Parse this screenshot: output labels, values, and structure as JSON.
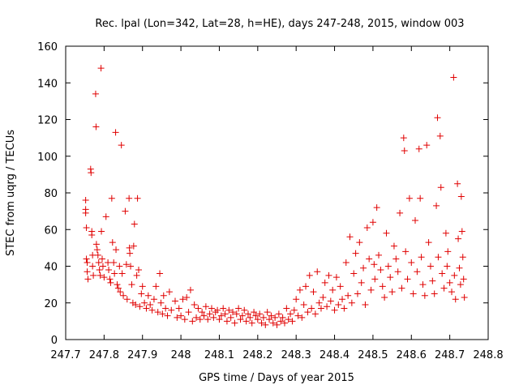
{
  "chart_data": {
    "type": "scatter",
    "title": "Rec. lpal (Lon=342, Lat=28, h=HE), days 247-248, 2015, window 003",
    "xlabel": "GPS time / Days of year 2015",
    "ylabel": "STEC from uqrg / TECUs",
    "xlim": [
      247.7,
      248.8
    ],
    "ylim": [
      0,
      160
    ],
    "xticks": [
      "247.7",
      "247.8",
      "247.9",
      "248",
      "248.1",
      "248.2",
      "248.3",
      "248.4",
      "248.5",
      "248.6",
      "248.7",
      "248.8"
    ],
    "yticks": [
      "0",
      "20",
      "40",
      "60",
      "80",
      "100",
      "120",
      "140",
      "160"
    ],
    "grid": false,
    "marker": "plus",
    "color": "#e00000",
    "points": [
      [
        247.752,
        76
      ],
      [
        247.752,
        71
      ],
      [
        247.752,
        69
      ],
      [
        247.754,
        61
      ],
      [
        247.754,
        44
      ],
      [
        247.756,
        42
      ],
      [
        247.756,
        37
      ],
      [
        247.758,
        33
      ],
      [
        247.765,
        93
      ],
      [
        247.766,
        91
      ],
      [
        247.768,
        59
      ],
      [
        247.768,
        57
      ],
      [
        247.77,
        46
      ],
      [
        247.77,
        40
      ],
      [
        247.772,
        35
      ],
      [
        247.778,
        134
      ],
      [
        247.779,
        116
      ],
      [
        247.78,
        52
      ],
      [
        247.782,
        49
      ],
      [
        247.784,
        46
      ],
      [
        247.786,
        42
      ],
      [
        247.788,
        38
      ],
      [
        247.79,
        35
      ],
      [
        247.792,
        148
      ],
      [
        247.793,
        59
      ],
      [
        247.795,
        44
      ],
      [
        247.797,
        40
      ],
      [
        247.8,
        34
      ],
      [
        247.805,
        67
      ],
      [
        247.81,
        42
      ],
      [
        247.812,
        38
      ],
      [
        247.815,
        33
      ],
      [
        247.817,
        31
      ],
      [
        247.82,
        77
      ],
      [
        247.822,
        53
      ],
      [
        247.825,
        42
      ],
      [
        247.827,
        36
      ],
      [
        247.83,
        113
      ],
      [
        247.831,
        49
      ],
      [
        247.834,
        30
      ],
      [
        247.837,
        28
      ],
      [
        247.84,
        40
      ],
      [
        247.842,
        26
      ],
      [
        247.845,
        106
      ],
      [
        247.847,
        36
      ],
      [
        247.85,
        24
      ],
      [
        247.855,
        70
      ],
      [
        247.858,
        41
      ],
      [
        247.86,
        22
      ],
      [
        247.865,
        77
      ],
      [
        247.866,
        50
      ],
      [
        247.867,
        47
      ],
      [
        247.869,
        40
      ],
      [
        247.872,
        30
      ],
      [
        247.875,
        20
      ],
      [
        247.877,
        51
      ],
      [
        247.879,
        63
      ],
      [
        247.882,
        19
      ],
      [
        247.885,
        35
      ],
      [
        247.887,
        77
      ],
      [
        247.89,
        38
      ],
      [
        247.893,
        18
      ],
      [
        247.897,
        25
      ],
      [
        247.9,
        29
      ],
      [
        247.905,
        20
      ],
      [
        247.91,
        17
      ],
      [
        247.915,
        24
      ],
      [
        247.92,
        19
      ],
      [
        247.925,
        16
      ],
      [
        247.93,
        22
      ],
      [
        247.935,
        29
      ],
      [
        247.94,
        15
      ],
      [
        247.945,
        36
      ],
      [
        247.948,
        20
      ],
      [
        247.952,
        14
      ],
      [
        247.955,
        24
      ],
      [
        247.96,
        17
      ],
      [
        247.965,
        13
      ],
      [
        247.97,
        26
      ],
      [
        247.975,
        16
      ],
      [
        247.985,
        21
      ],
      [
        247.99,
        12
      ],
      [
        247.995,
        17
      ],
      [
        248.0,
        13
      ],
      [
        248.005,
        22
      ],
      [
        248.01,
        11
      ],
      [
        248.015,
        23
      ],
      [
        248.02,
        15
      ],
      [
        248.025,
        27
      ],
      [
        248.03,
        10
      ],
      [
        248.035,
        19
      ],
      [
        248.04,
        12
      ],
      [
        248.045,
        17
      ],
      [
        248.05,
        11
      ],
      [
        248.055,
        15
      ],
      [
        248.06,
        13
      ],
      [
        248.065,
        18
      ],
      [
        248.07,
        11
      ],
      [
        248.075,
        14
      ],
      [
        248.08,
        17
      ],
      [
        248.085,
        12
      ],
      [
        248.09,
        15
      ],
      [
        248.095,
        16
      ],
      [
        248.1,
        11
      ],
      [
        248.105,
        13
      ],
      [
        248.11,
        17
      ],
      [
        248.115,
        14
      ],
      [
        248.12,
        10
      ],
      [
        248.125,
        16
      ],
      [
        248.13,
        12
      ],
      [
        248.135,
        15
      ],
      [
        248.14,
        9
      ],
      [
        248.145,
        14
      ],
      [
        248.15,
        17
      ],
      [
        248.155,
        11
      ],
      [
        248.16,
        13
      ],
      [
        248.165,
        16
      ],
      [
        248.17,
        10
      ],
      [
        248.175,
        14
      ],
      [
        248.18,
        12
      ],
      [
        248.185,
        9
      ],
      [
        248.19,
        15
      ],
      [
        248.195,
        13
      ],
      [
        248.2,
        11
      ],
      [
        248.205,
        14
      ],
      [
        248.21,
        9
      ],
      [
        248.215,
        12
      ],
      [
        248.22,
        8
      ],
      [
        248.225,
        15
      ],
      [
        248.23,
        11
      ],
      [
        248.235,
        13
      ],
      [
        248.24,
        9
      ],
      [
        248.245,
        12
      ],
      [
        248.25,
        8
      ],
      [
        248.255,
        14
      ],
      [
        248.26,
        10
      ],
      [
        248.265,
        12
      ],
      [
        248.27,
        9
      ],
      [
        248.275,
        17
      ],
      [
        248.28,
        11
      ],
      [
        248.285,
        14
      ],
      [
        248.29,
        10
      ],
      [
        248.295,
        16
      ],
      [
        248.3,
        22
      ],
      [
        248.305,
        13
      ],
      [
        248.31,
        27
      ],
      [
        248.315,
        12
      ],
      [
        248.32,
        19
      ],
      [
        248.325,
        29
      ],
      [
        248.33,
        15
      ],
      [
        248.335,
        35
      ],
      [
        248.34,
        17
      ],
      [
        248.345,
        26
      ],
      [
        248.35,
        14
      ],
      [
        248.355,
        37
      ],
      [
        248.36,
        20
      ],
      [
        248.365,
        17
      ],
      [
        248.37,
        23
      ],
      [
        248.375,
        31
      ],
      [
        248.38,
        18
      ],
      [
        248.385,
        35
      ],
      [
        248.39,
        21
      ],
      [
        248.395,
        27
      ],
      [
        248.4,
        16
      ],
      [
        248.405,
        34
      ],
      [
        248.41,
        19
      ],
      [
        248.415,
        29
      ],
      [
        248.42,
        22
      ],
      [
        248.425,
        17
      ],
      [
        248.43,
        42
      ],
      [
        248.435,
        24
      ],
      [
        248.44,
        56
      ],
      [
        248.445,
        20
      ],
      [
        248.45,
        36
      ],
      [
        248.455,
        47
      ],
      [
        248.46,
        25
      ],
      [
        248.465,
        53
      ],
      [
        248.47,
        31
      ],
      [
        248.475,
        39
      ],
      [
        248.48,
        19
      ],
      [
        248.485,
        61
      ],
      [
        248.49,
        44
      ],
      [
        248.495,
        27
      ],
      [
        248.5,
        64
      ],
      [
        248.503,
        41
      ],
      [
        248.505,
        33
      ],
      [
        248.51,
        72
      ],
      [
        248.515,
        46
      ],
      [
        248.52,
        38
      ],
      [
        248.525,
        29
      ],
      [
        248.53,
        23
      ],
      [
        248.535,
        58
      ],
      [
        248.54,
        40
      ],
      [
        248.545,
        34
      ],
      [
        248.55,
        26
      ],
      [
        248.555,
        51
      ],
      [
        248.56,
        44
      ],
      [
        248.565,
        37
      ],
      [
        248.57,
        69
      ],
      [
        248.575,
        28
      ],
      [
        248.58,
        110
      ],
      [
        248.582,
        103
      ],
      [
        248.585,
        48
      ],
      [
        248.59,
        33
      ],
      [
        248.595,
        77
      ],
      [
        248.6,
        42
      ],
      [
        248.605,
        25
      ],
      [
        248.61,
        65
      ],
      [
        248.615,
        37
      ],
      [
        248.62,
        104
      ],
      [
        248.623,
        77
      ],
      [
        248.626,
        45
      ],
      [
        248.63,
        30
      ],
      [
        248.635,
        24
      ],
      [
        248.64,
        106
      ],
      [
        248.645,
        53
      ],
      [
        248.65,
        40
      ],
      [
        248.655,
        32
      ],
      [
        248.66,
        25
      ],
      [
        248.665,
        73
      ],
      [
        248.668,
        121
      ],
      [
        248.67,
        45
      ],
      [
        248.675,
        111
      ],
      [
        248.677,
        83
      ],
      [
        248.68,
        36
      ],
      [
        248.685,
        28
      ],
      [
        248.69,
        58
      ],
      [
        248.693,
        40
      ],
      [
        248.695,
        48
      ],
      [
        248.7,
        31
      ],
      [
        248.705,
        26
      ],
      [
        248.71,
        143
      ],
      [
        248.712,
        35
      ],
      [
        248.715,
        22
      ],
      [
        248.72,
        85
      ],
      [
        248.722,
        55
      ],
      [
        248.725,
        39
      ],
      [
        248.728,
        30
      ],
      [
        248.73,
        78
      ],
      [
        248.732,
        59
      ],
      [
        248.734,
        45
      ],
      [
        248.736,
        33
      ],
      [
        248.738,
        23
      ]
    ]
  }
}
